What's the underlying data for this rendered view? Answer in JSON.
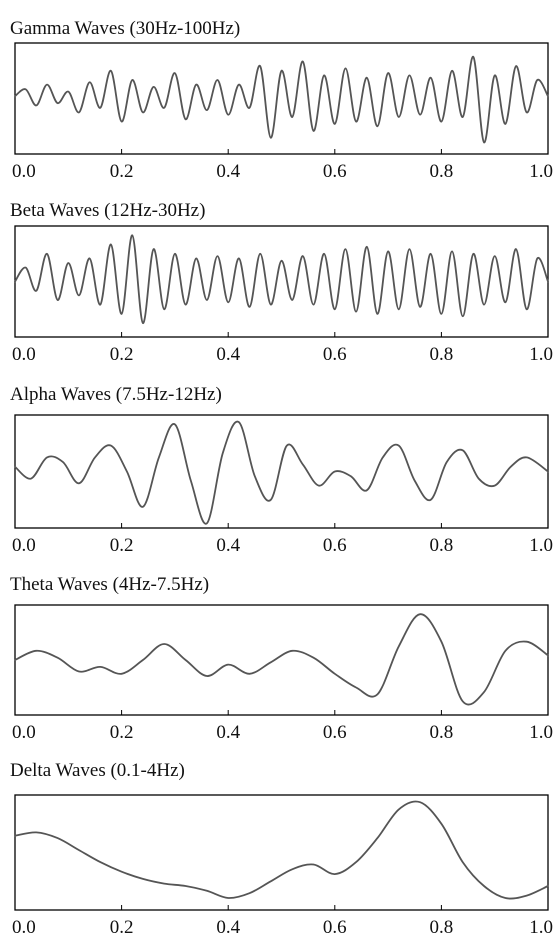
{
  "colors": {
    "frame": "#000000",
    "trace": "#555555",
    "text": "#111111"
  },
  "chart_data": [
    {
      "type": "line",
      "title": "Gamma Waves (30Hz-100Hz)",
      "xlim": [
        0.0,
        1.0
      ],
      "ylim": [
        -1.2,
        1.2
      ],
      "xticks": [
        "0.0",
        "0.2",
        "0.4",
        "0.6",
        "0.8",
        "1.0"
      ],
      "grid": false,
      "x": [
        0.0,
        0.02,
        0.04,
        0.06,
        0.08,
        0.1,
        0.12,
        0.14,
        0.16,
        0.18,
        0.2,
        0.22,
        0.24,
        0.26,
        0.28,
        0.3,
        0.32,
        0.34,
        0.36,
        0.38,
        0.4,
        0.42,
        0.44,
        0.46,
        0.48,
        0.5,
        0.52,
        0.54,
        0.56,
        0.58,
        0.6,
        0.62,
        0.64,
        0.66,
        0.68,
        0.7,
        0.72,
        0.74,
        0.76,
        0.78,
        0.8,
        0.82,
        0.84,
        0.86,
        0.88,
        0.9,
        0.92,
        0.94,
        0.96,
        0.98,
        1.0
      ],
      "y": [
        0.05,
        0.2,
        -0.15,
        0.3,
        -0.1,
        0.15,
        -0.3,
        0.35,
        -0.2,
        0.6,
        -0.5,
        0.4,
        -0.3,
        0.25,
        -0.2,
        0.55,
        -0.45,
        0.3,
        -0.25,
        0.4,
        -0.35,
        0.3,
        -0.2,
        0.7,
        -0.85,
        0.6,
        -0.4,
        0.8,
        -0.7,
        0.5,
        -0.55,
        0.65,
        -0.5,
        0.45,
        -0.6,
        0.55,
        -0.4,
        0.5,
        -0.35,
        0.45,
        -0.5,
        0.6,
        -0.4,
        0.9,
        -0.95,
        0.5,
        -0.55,
        0.7,
        -0.3,
        0.4,
        0.05
      ]
    },
    {
      "type": "line",
      "title": "Beta Waves (12Hz-30Hz)",
      "xlim": [
        0.0,
        1.0
      ],
      "ylim": [
        -1.2,
        1.2
      ],
      "xticks": [
        "0.0",
        "0.2",
        "0.4",
        "0.6",
        "0.8",
        "1.0"
      ],
      "grid": false,
      "x": [
        0.0,
        0.02,
        0.04,
        0.06,
        0.08,
        0.1,
        0.12,
        0.14,
        0.16,
        0.18,
        0.2,
        0.22,
        0.24,
        0.26,
        0.28,
        0.3,
        0.32,
        0.34,
        0.36,
        0.38,
        0.4,
        0.42,
        0.44,
        0.46,
        0.48,
        0.5,
        0.52,
        0.54,
        0.56,
        0.58,
        0.6,
        0.62,
        0.64,
        0.66,
        0.68,
        0.7,
        0.72,
        0.74,
        0.76,
        0.78,
        0.8,
        0.82,
        0.84,
        0.86,
        0.88,
        0.9,
        0.92,
        0.94,
        0.96,
        0.98,
        1.0
      ],
      "y": [
        0.0,
        0.3,
        -0.2,
        0.6,
        -0.4,
        0.4,
        -0.3,
        0.5,
        -0.5,
        0.8,
        -0.7,
        1.0,
        -0.9,
        0.7,
        -0.6,
        0.6,
        -0.5,
        0.5,
        -0.4,
        0.55,
        -0.45,
        0.5,
        -0.55,
        0.6,
        -0.5,
        0.45,
        -0.4,
        0.55,
        -0.5,
        0.6,
        -0.6,
        0.7,
        -0.65,
        0.75,
        -0.7,
        0.65,
        -0.6,
        0.7,
        -0.55,
        0.6,
        -0.7,
        0.65,
        -0.75,
        0.6,
        -0.5,
        0.55,
        -0.45,
        0.7,
        -0.6,
        0.5,
        0.0
      ]
    },
    {
      "type": "line",
      "title": "Alpha Waves (7.5Hz-12Hz)",
      "xlim": [
        0.0,
        1.0
      ],
      "ylim": [
        -1.2,
        1.2
      ],
      "xticks": [
        "0.0",
        "0.2",
        "0.4",
        "0.6",
        "0.8",
        "1.0"
      ],
      "grid": false,
      "x": [
        0.0,
        0.03,
        0.06,
        0.09,
        0.12,
        0.15,
        0.18,
        0.21,
        0.24,
        0.27,
        0.3,
        0.33,
        0.36,
        0.39,
        0.42,
        0.45,
        0.48,
        0.51,
        0.54,
        0.57,
        0.6,
        0.63,
        0.66,
        0.69,
        0.72,
        0.75,
        0.78,
        0.81,
        0.84,
        0.87,
        0.9,
        0.93,
        0.96,
        1.0
      ],
      "y": [
        0.1,
        -0.15,
        0.3,
        0.2,
        -0.25,
        0.3,
        0.55,
        0.0,
        -0.75,
        0.3,
        1.0,
        -0.2,
        -1.1,
        0.4,
        1.05,
        -0.1,
        -0.6,
        0.55,
        0.15,
        -0.3,
        0.0,
        -0.1,
        -0.4,
        0.3,
        0.55,
        -0.2,
        -0.6,
        0.2,
        0.45,
        -0.15,
        -0.3,
        0.1,
        0.3,
        0.0
      ]
    },
    {
      "type": "line",
      "title": "Theta Waves (4Hz-7.5Hz)",
      "xlim": [
        0.0,
        1.0
      ],
      "ylim": [
        -1.2,
        1.2
      ],
      "xticks": [
        "0.0",
        "0.2",
        "0.4",
        "0.6",
        "0.8",
        "1.0"
      ],
      "grid": false,
      "x": [
        0.0,
        0.04,
        0.08,
        0.12,
        0.16,
        0.2,
        0.24,
        0.28,
        0.32,
        0.36,
        0.4,
        0.44,
        0.48,
        0.52,
        0.56,
        0.6,
        0.64,
        0.68,
        0.72,
        0.76,
        0.8,
        0.84,
        0.88,
        0.92,
        0.96,
        1.0
      ],
      "y": [
        0.0,
        0.2,
        0.05,
        -0.25,
        -0.15,
        -0.3,
        0.0,
        0.35,
        0.0,
        -0.35,
        -0.1,
        -0.3,
        -0.05,
        0.2,
        0.05,
        -0.3,
        -0.6,
        -0.75,
        0.3,
        1.0,
        0.4,
        -0.9,
        -0.7,
        0.2,
        0.4,
        0.1
      ]
    },
    {
      "type": "line",
      "title": "Delta Waves (0.1-4Hz)",
      "xlim": [
        0.0,
        1.0
      ],
      "ylim": [
        -1.2,
        1.2
      ],
      "xticks": [
        "0.0",
        "0.2",
        "0.4",
        "0.6",
        "0.8",
        "1.0"
      ],
      "grid": false,
      "x": [
        0.0,
        0.04,
        0.08,
        0.12,
        0.16,
        0.2,
        0.24,
        0.28,
        0.32,
        0.36,
        0.4,
        0.44,
        0.48,
        0.52,
        0.56,
        0.6,
        0.64,
        0.68,
        0.72,
        0.76,
        0.8,
        0.84,
        0.88,
        0.92,
        0.96,
        1.0
      ],
      "y": [
        0.35,
        0.42,
        0.3,
        0.05,
        -0.2,
        -0.4,
        -0.55,
        -0.65,
        -0.7,
        -0.8,
        -0.95,
        -0.85,
        -0.6,
        -0.35,
        -0.25,
        -0.45,
        -0.2,
        0.3,
        0.9,
        1.05,
        0.6,
        -0.2,
        -0.7,
        -0.95,
        -0.9,
        -0.7
      ]
    }
  ]
}
